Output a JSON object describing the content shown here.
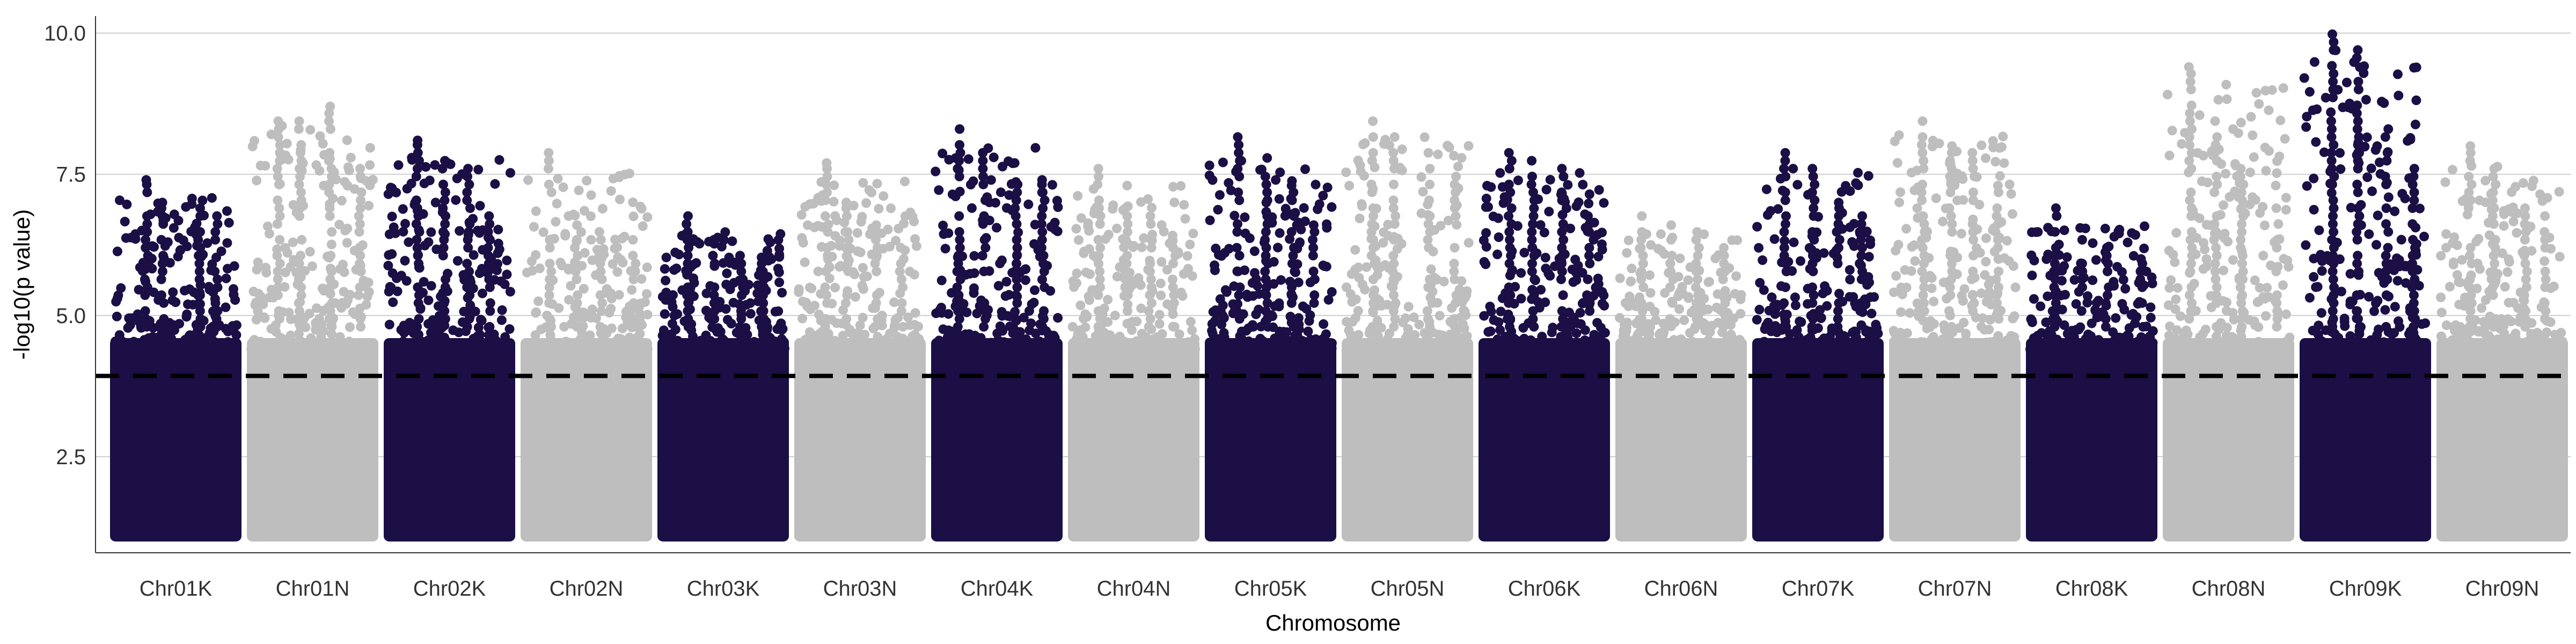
{
  "chart_data": {
    "type": "scatter",
    "title": "",
    "xlabel": "Chromosome",
    "ylabel": "-log10(p value)",
    "ylim": [
      0.8,
      10.3
    ],
    "y_ticks": [
      "2.5",
      "5.0",
      "7.5",
      "10.0"
    ],
    "y_tick_values": [
      2.5,
      5.0,
      7.5,
      10.0
    ],
    "grid": true,
    "legend": "none",
    "threshold": 3.93,
    "colors": {
      "odd": "#1b0f45",
      "even": "#bebebe",
      "threshold": "#000000",
      "grid": "#cfcfcf"
    },
    "chromosomes": [
      {
        "name": "Chr01K",
        "peak": 7.4,
        "peaks": [
          7.4,
          7.0,
          6.9,
          6.8
        ]
      },
      {
        "name": "Chr01N",
        "peak": 8.7,
        "peaks": [
          8.5,
          8.5,
          8.7,
          7.6
        ]
      },
      {
        "name": "Chr02K",
        "peak": 8.1,
        "peaks": [
          8.1,
          7.8,
          7.6,
          6.8
        ]
      },
      {
        "name": "Chr02N",
        "peak": 7.9,
        "peaks": [
          7.9,
          6.6,
          6.5,
          6.4
        ]
      },
      {
        "name": "Chr03K",
        "peak": 6.8,
        "peaks": [
          6.8,
          6.4,
          6.1,
          6.0
        ]
      },
      {
        "name": "Chr03N",
        "peak": 7.7,
        "peaks": [
          7.7,
          7.0,
          6.6,
          6.2
        ]
      },
      {
        "name": "Chr04K",
        "peak": 8.3,
        "peaks": [
          8.3,
          7.9,
          7.7,
          7.4
        ]
      },
      {
        "name": "Chr04N",
        "peak": 7.6,
        "peaks": [
          7.6,
          7.3,
          6.8,
          6.4
        ]
      },
      {
        "name": "Chr05K",
        "peak": 8.2,
        "peaks": [
          8.2,
          7.5,
          7.3,
          6.6
        ]
      },
      {
        "name": "Chr05N",
        "peak": 8.5,
        "peaks": [
          8.5,
          8.2,
          7.9,
          7.5
        ]
      },
      {
        "name": "Chr06K",
        "peak": 7.9,
        "peaks": [
          7.9,
          7.8,
          7.6,
          6.8
        ]
      },
      {
        "name": "Chr06N",
        "peak": 6.8,
        "peaks": [
          6.8,
          6.6,
          6.5,
          6.2
        ]
      },
      {
        "name": "Chr07K",
        "peak": 7.9,
        "peaks": [
          7.9,
          7.6,
          7.0,
          6.8
        ]
      },
      {
        "name": "Chr07N",
        "peak": 8.5,
        "peaks": [
          8.5,
          8.0,
          7.9,
          7.3
        ]
      },
      {
        "name": "Chr08K",
        "peak": 6.9,
        "peaks": [
          6.9,
          6.4,
          6.2,
          6.0
        ]
      },
      {
        "name": "Chr08N",
        "peak": 9.4,
        "peaks": [
          9.4,
          8.2,
          7.6,
          7.3
        ]
      },
      {
        "name": "Chr09K",
        "peak": 10.0,
        "peaks": [
          10.0,
          9.7,
          8.3,
          7.6
        ]
      },
      {
        "name": "Chr09N",
        "peak": 8.0,
        "peaks": [
          8.0,
          7.6,
          6.9,
          6.8
        ]
      }
    ]
  }
}
